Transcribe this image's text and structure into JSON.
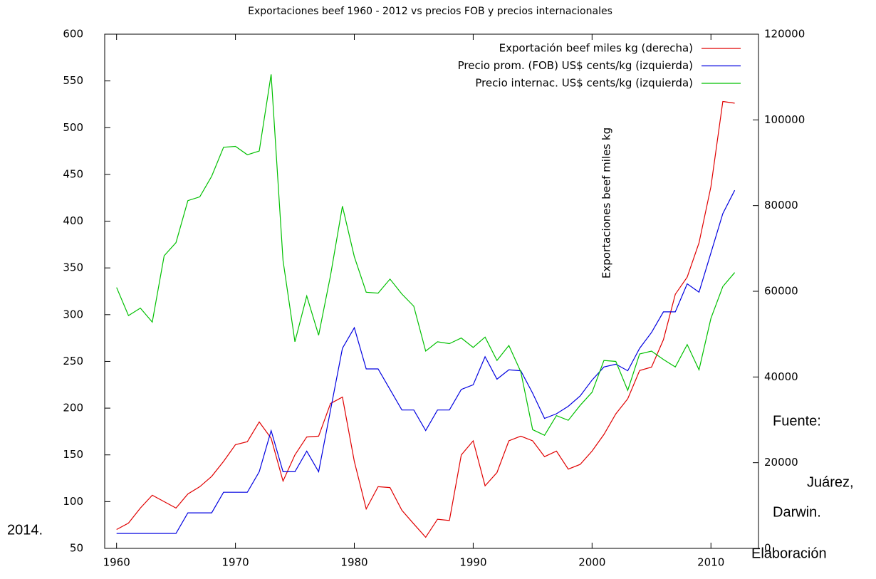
{
  "chart_data": {
    "type": "line",
    "title": "Exportaciones beef 1960 - 2012 vs precios FOB y precios internacionales",
    "y2_label": "Exportaciones beef miles kg",
    "annotations": [
      "Fuente:",
      "Juárez,",
      "Darwin.",
      "2014.",
      "Elaboración"
    ],
    "x": [
      1960,
      1961,
      1962,
      1963,
      1964,
      1965,
      1966,
      1967,
      1968,
      1969,
      1970,
      1971,
      1972,
      1973,
      1974,
      1975,
      1976,
      1977,
      1978,
      1979,
      1980,
      1981,
      1982,
      1983,
      1984,
      1985,
      1986,
      1987,
      1988,
      1989,
      1990,
      1991,
      1992,
      1993,
      1994,
      1995,
      1996,
      1997,
      1998,
      1999,
      2000,
      2001,
      2002,
      2003,
      2004,
      2005,
      2006,
      2007,
      2008,
      2009,
      2010,
      2011,
      2012
    ],
    "series": [
      {
        "name": "Exportación  beef miles kg  (derecha)",
        "color": "#e00000",
        "axis": "y2",
        "values": [
          4400,
          5900,
          9400,
          12400,
          10900,
          9400,
          12700,
          14400,
          16800,
          20300,
          24200,
          24900,
          29500,
          25700,
          15700,
          21800,
          26000,
          26200,
          33800,
          35300,
          20300,
          9200,
          14400,
          14200,
          8900,
          5700,
          2600,
          6800,
          6500,
          21800,
          25100,
          14600,
          17700,
          25100,
          26200,
          25100,
          21400,
          22700,
          18500,
          19600,
          22700,
          26600,
          31400,
          34900,
          41500,
          42300,
          48700,
          59300,
          63300,
          71300,
          84400,
          104300,
          103900
        ]
      },
      {
        "name": "Precio prom. (FOB) US$ cents/kg  (izquierda)",
        "color": "#0000e0",
        "values": [
          66,
          66,
          66,
          66,
          66,
          66,
          88,
          88,
          88,
          110,
          110,
          110,
          132,
          176,
          132,
          132,
          154,
          132,
          198,
          264,
          286,
          242,
          242,
          220,
          198,
          198,
          176,
          198,
          198,
          220,
          225,
          255,
          231,
          241,
          240,
          216,
          189,
          194,
          202,
          213,
          230,
          244,
          247,
          240,
          264,
          281,
          303,
          303,
          333,
          324,
          366,
          408,
          433
        ]
      },
      {
        "name": "Precio internac.  US$ cents/kg  (izquierda)",
        "color": "#00c000",
        "values": [
          329,
          299,
          307,
          292,
          363,
          377,
          422,
          426,
          448,
          479,
          480,
          471,
          475,
          557,
          358,
          271,
          320,
          278,
          342,
          416,
          362,
          324,
          323,
          338,
          322,
          309,
          261,
          271,
          269,
          275,
          265,
          276,
          251,
          267,
          239,
          177,
          171,
          192,
          187,
          203,
          217,
          251,
          250,
          219,
          258,
          261,
          252,
          244,
          268,
          241,
          296,
          330,
          345
        ]
      }
    ],
    "xlim": [
      1959,
      2014
    ],
    "xticks": [
      1960,
      1970,
      1980,
      1990,
      2000,
      2010
    ],
    "ylim": [
      50,
      600
    ],
    "yticks": [
      50,
      100,
      150,
      200,
      250,
      300,
      350,
      400,
      450,
      500,
      550,
      600
    ],
    "y2lim": [
      0,
      120000
    ],
    "y2ticks": [
      0,
      20000,
      40000,
      60000,
      80000,
      100000,
      120000
    ],
    "grid": false,
    "legend": "top-right"
  }
}
